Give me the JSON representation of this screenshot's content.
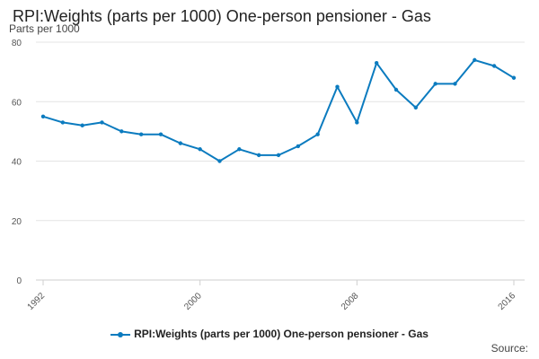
{
  "chart_data": {
    "type": "line",
    "title": "RPI:Weights (parts per 1000) One-person pensioner - Gas",
    "ylabel": "Parts per 1000",
    "xlabel": "",
    "x": [
      1992,
      1993,
      1994,
      1995,
      1996,
      1997,
      1998,
      1999,
      2000,
      2001,
      2002,
      2003,
      2004,
      2005,
      2006,
      2007,
      2008,
      2009,
      2010,
      2011,
      2012,
      2013,
      2014,
      2015,
      2016
    ],
    "series": [
      {
        "name": "RPI:Weights (parts per 1000) One-person pensioner - Gas",
        "color": "#0b7bbf",
        "values": [
          55,
          53,
          52,
          53,
          50,
          49,
          49,
          46,
          44,
          40,
          44,
          42,
          42,
          45,
          49,
          65,
          53,
          73,
          64,
          58,
          66,
          66,
          74,
          72,
          68
        ]
      }
    ],
    "ylim": [
      0,
      80
    ],
    "yticks": [
      0,
      20,
      40,
      60,
      80
    ],
    "xticks": [
      1992,
      2000,
      2008,
      2016
    ],
    "grid": "horizontal",
    "legend": "bottom"
  },
  "source_label": "Source:"
}
